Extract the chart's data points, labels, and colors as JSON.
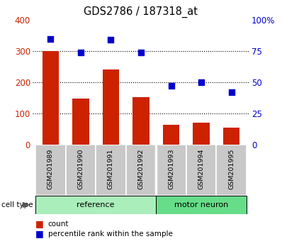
{
  "title": "GDS2786 / 187318_at",
  "samples": [
    "GSM201989",
    "GSM201990",
    "GSM201991",
    "GSM201992",
    "GSM201993",
    "GSM201994",
    "GSM201995"
  ],
  "counts": [
    300,
    148,
    240,
    152,
    62,
    70,
    54
  ],
  "percentiles": [
    85,
    74,
    84,
    74,
    47,
    50,
    42
  ],
  "bar_color": "#cc2200",
  "dot_color": "#0000cc",
  "left_ylim": [
    0,
    400
  ],
  "right_ylim": [
    0,
    100
  ],
  "left_yticks": [
    0,
    100,
    200,
    300,
    400
  ],
  "right_yticks": [
    0,
    25,
    50,
    75,
    100
  ],
  "right_yticklabels": [
    "0",
    "25",
    "50",
    "75",
    "100%"
  ],
  "left_color": "#cc2200",
  "right_color": "#0000cc",
  "background_color": "#ffffff",
  "tick_bg_color": "#c8c8c8",
  "group_bg_reference": "#aaeebb",
  "group_bg_motor": "#66dd88",
  "legend_count_label": "count",
  "legend_pct_label": "percentile rank within the sample",
  "cell_type_label": "cell type",
  "ref_count": 4,
  "motor_count": 3
}
